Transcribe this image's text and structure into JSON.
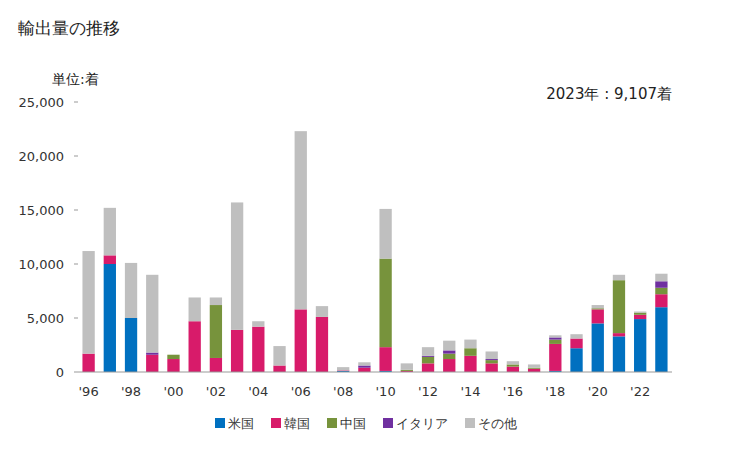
{
  "chart_data": {
    "type": "bar",
    "stacked": true,
    "title": "輸出量の推移",
    "y_label": "単位:着",
    "annotation": "2023年 : 9,107着",
    "categories": [
      "'96",
      null,
      "'98",
      null,
      "'00",
      null,
      "'02",
      null,
      "'04",
      null,
      "'06",
      null,
      "'08",
      null,
      "'10",
      null,
      "'12",
      null,
      "'14",
      null,
      "'16",
      null,
      "'18",
      null,
      "'20",
      null,
      "'22",
      null
    ],
    "series": [
      {
        "name": "米国",
        "color": "#0070c0",
        "values": [
          0,
          10000,
          5000,
          0,
          0,
          0,
          0,
          0,
          0,
          0,
          0,
          0,
          100,
          0,
          100,
          0,
          0,
          0,
          0,
          0,
          0,
          0,
          100,
          2200,
          4500,
          3300,
          4900,
          6000
        ]
      },
      {
        "name": "韓国",
        "color": "#d81b6a",
        "values": [
          1700,
          800,
          0,
          1600,
          1200,
          4700,
          1300,
          3900,
          4200,
          600,
          5800,
          5100,
          50,
          400,
          2200,
          100,
          800,
          1200,
          1500,
          800,
          500,
          300,
          2500,
          900,
          1300,
          300,
          400,
          1200
        ]
      },
      {
        "name": "中国",
        "color": "#77933c",
        "values": [
          0,
          0,
          0,
          0,
          400,
          0,
          4900,
          0,
          0,
          0,
          0,
          0,
          0,
          0,
          8200,
          100,
          600,
          500,
          700,
          300,
          200,
          100,
          400,
          0,
          100,
          4900,
          200,
          600
        ]
      },
      {
        "name": "イタリア",
        "color": "#7030a0",
        "values": [
          0,
          0,
          0,
          200,
          0,
          0,
          0,
          0,
          0,
          0,
          0,
          0,
          0,
          200,
          0,
          0,
          100,
          300,
          0,
          100,
          0,
          0,
          200,
          0,
          0,
          0,
          0,
          600
        ]
      },
      {
        "name": "その他",
        "color": "#bfbfbf",
        "values": [
          9500,
          4400,
          5100,
          7200,
          0,
          2200,
          700,
          11800,
          500,
          1800,
          16500,
          1000,
          300,
          300,
          4600,
          600,
          800,
          900,
          800,
          700,
          300,
          300,
          200,
          400,
          300,
          500,
          100,
          700
        ]
      }
    ],
    "ylim": [
      0,
      25000
    ],
    "yticks": [
      0,
      {
        "value": 5000,
        "label": "5,000"
      },
      {
        "value": 10000,
        "label": "10,000"
      },
      {
        "value": 15000,
        "label": "15,000"
      },
      {
        "value": 20000,
        "label": "20,000"
      },
      {
        "value": 25000,
        "label": "25,000"
      }
    ],
    "grid": false,
    "legend": "bottom"
  }
}
